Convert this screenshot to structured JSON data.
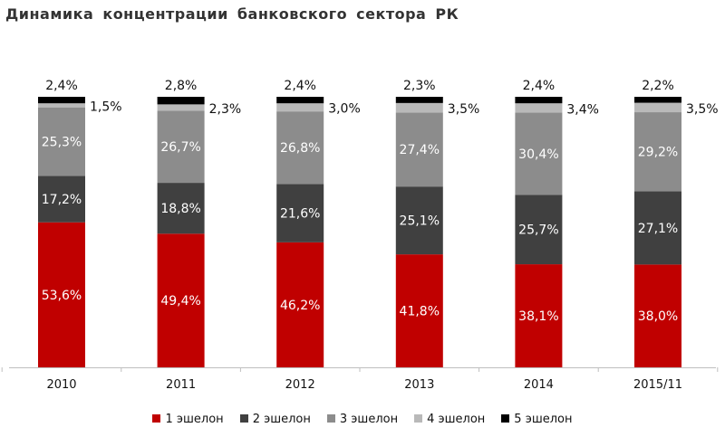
{
  "title": "Динамика концентрации банковского сектора РК",
  "colors": {
    "1 эшелон": "#c00000",
    "2 эшелон": "#404040",
    "3 эшелон": "#8c8c8c",
    "4 эшелон": "#b9b9b9",
    "5 эшелон": "#000000"
  },
  "chart_data": {
    "type": "bar",
    "stacked": true,
    "title": "Динамика концентрации банковского сектора РК",
    "categories": [
      "2010",
      "2011",
      "2012",
      "2013",
      "2014",
      "2015/11"
    ],
    "series": [
      {
        "name": "1 эшелон",
        "values": [
          53.6,
          49.4,
          46.2,
          41.8,
          38.1,
          38.0
        ],
        "labels": [
          "53,6%",
          "49,4%",
          "46,2%",
          "41,8%",
          "38,1%",
          "38,0%"
        ]
      },
      {
        "name": "2 эшелон",
        "values": [
          17.2,
          18.8,
          21.6,
          25.1,
          25.7,
          27.1
        ],
        "labels": [
          "17,2%",
          "18,8%",
          "21,6%",
          "25,1%",
          "25,7%",
          "27,1%"
        ]
      },
      {
        "name": "3 эшелон",
        "values": [
          25.3,
          26.7,
          26.8,
          27.4,
          30.4,
          29.2
        ],
        "labels": [
          "25,3%",
          "26,7%",
          "26,8%",
          "27,4%",
          "30,4%",
          "29,2%"
        ]
      },
      {
        "name": "4 эшелон",
        "values": [
          1.5,
          2.3,
          3.0,
          3.5,
          3.4,
          3.5
        ],
        "labels": [
          "1,5%",
          "2,3%",
          "3,0%",
          "3,5%",
          "3,4%",
          "3,5%"
        ]
      },
      {
        "name": "5 эшелон",
        "values": [
          2.4,
          2.8,
          2.4,
          2.3,
          2.4,
          2.2
        ],
        "labels": [
          "2,4%",
          "2,8%",
          "2,4%",
          "2,3%",
          "2,4%",
          "2,2%"
        ]
      }
    ],
    "ylim": [
      0,
      100
    ],
    "xlabel": "",
    "ylabel": "",
    "grid": false,
    "legend": "bottom"
  }
}
